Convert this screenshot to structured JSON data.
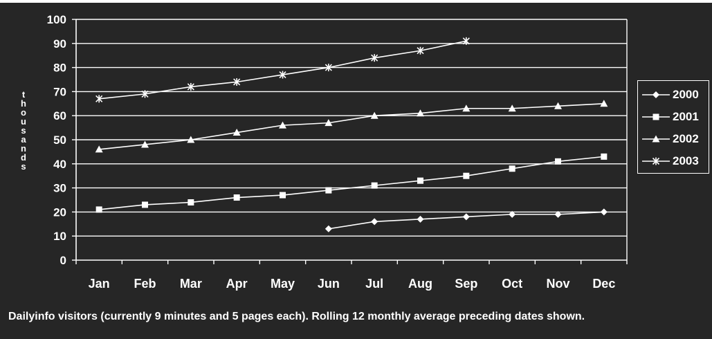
{
  "chart_data": {
    "type": "line",
    "categories": [
      "Jan",
      "Feb",
      "Mar",
      "Apr",
      "May",
      "Jun",
      "Jul",
      "Aug",
      "Sep",
      "Oct",
      "Nov",
      "Dec"
    ],
    "ylabel": "thousands",
    "ylim": [
      0,
      100
    ],
    "yticks": [
      0,
      10,
      20,
      30,
      40,
      50,
      60,
      70,
      80,
      90,
      100
    ],
    "grid": true,
    "legend_position": "right",
    "series": [
      {
        "name": "2000",
        "marker": "diamond",
        "values": [
          null,
          null,
          null,
          null,
          null,
          13,
          16,
          17,
          18,
          19,
          19,
          20
        ]
      },
      {
        "name": "2001",
        "marker": "square",
        "values": [
          21,
          23,
          24,
          26,
          27,
          29,
          31,
          33,
          35,
          38,
          41,
          43
        ]
      },
      {
        "name": "2002",
        "marker": "triangle",
        "values": [
          46,
          48,
          50,
          53,
          56,
          57,
          60,
          61,
          63,
          63,
          64,
          65
        ]
      },
      {
        "name": "2003",
        "marker": "star",
        "values": [
          67,
          69,
          72,
          74,
          77,
          80,
          84,
          87,
          91,
          null,
          null,
          null
        ]
      }
    ],
    "caption": "Dailyinfo visitors (currently 9 minutes and 5 pages each).  Rolling 12 monthly average preceding dates shown."
  },
  "colors": {
    "background": "#262626",
    "foreground": "#ffffff"
  }
}
